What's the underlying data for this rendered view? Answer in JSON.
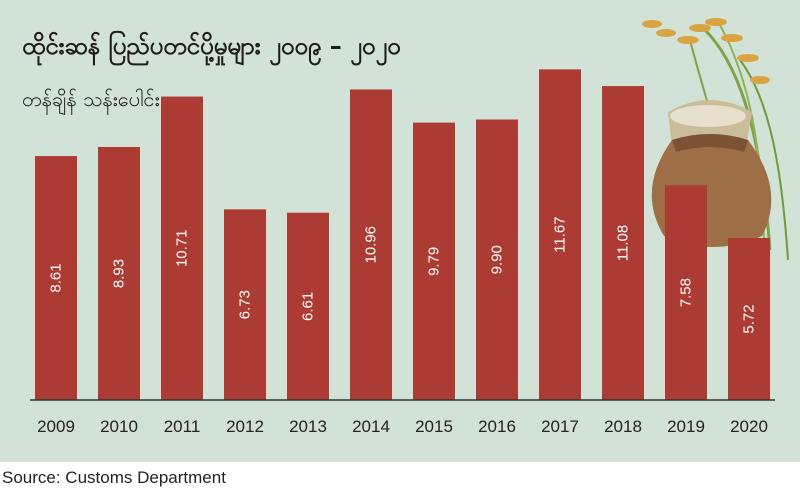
{
  "title": "ထိုင်းဆန် ပြည်ပတင်ပို့မှုများ ၂၀၀၉ – ၂၀၂၀",
  "subtitle": "တန်ချိန် သန်းပေါင်း",
  "source": "Source: Customs Department",
  "colors": {
    "bar": "#ac3b34",
    "panel": "#d3e2d6",
    "axis": "#333333"
  },
  "chart_data": {
    "type": "bar",
    "title": "ထိုင်းဆန် ပြည်ပတင်ပို့မှုများ ၂၀၀၉ – ၂၀၂၀",
    "subtitle": "တန်ချိန် သန်းပေါင်း",
    "xlabel": "",
    "ylabel": "",
    "categories": [
      "2009",
      "2010",
      "2011",
      "2012",
      "2013",
      "2014",
      "2015",
      "2016",
      "2017",
      "2018",
      "2019",
      "2020"
    ],
    "values": [
      8.61,
      8.93,
      10.71,
      6.73,
      6.61,
      10.96,
      9.79,
      9.9,
      11.67,
      11.08,
      7.58,
      5.72
    ],
    "data_labels": [
      "8.61",
      "8.93",
      "10.71",
      "6.73",
      "6.61",
      "10.96",
      "9.79",
      "9.90",
      "11.67",
      "11.08",
      "7.58",
      "5.72"
    ],
    "ylim": [
      0,
      12
    ],
    "grid": false,
    "legend": "none"
  }
}
